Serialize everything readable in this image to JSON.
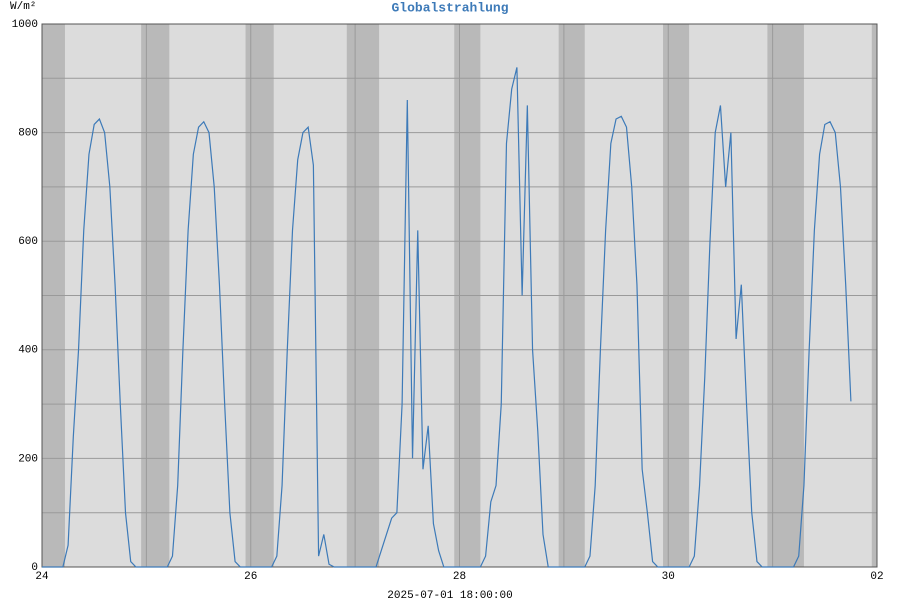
{
  "chart_data": {
    "type": "line",
    "title": "Globalstrahlung",
    "y_label": "W/m²",
    "x_label": "2025-07-01 18:00:00",
    "xlim": [
      24,
      32
    ],
    "xticks": [
      24,
      26,
      28,
      30,
      {
        "value": 32,
        "label": "02"
      }
    ],
    "x_minor_grid": [
      25,
      27,
      29,
      31
    ],
    "ylim": [
      0,
      1000
    ],
    "yticks": [
      0,
      200,
      400,
      600,
      800,
      1000
    ],
    "y_minor_grid": [
      100,
      300,
      500,
      700,
      900
    ],
    "grid": true,
    "background": "#dcdcdc",
    "shade_color": "#b9b9b9",
    "shaded_x_ranges": [
      [
        24,
        24.22
      ],
      [
        24.95,
        25.22
      ],
      [
        25.95,
        26.22
      ],
      [
        26.92,
        27.23
      ],
      [
        27.95,
        28.2
      ],
      [
        28.95,
        29.2
      ],
      [
        29.95,
        30.2
      ],
      [
        30.95,
        31.3
      ],
      [
        31.95,
        32
      ]
    ],
    "series": [
      {
        "name": "Globalstrahlung",
        "color": "#3d7ab8",
        "x": [
          24,
          24.2,
          24.25,
          24.3,
          24.35,
          24.4,
          24.45,
          24.5,
          24.55,
          24.6,
          24.65,
          24.7,
          24.75,
          24.8,
          24.85,
          24.9,
          25,
          25.2,
          25.25,
          25.3,
          25.35,
          25.4,
          25.45,
          25.5,
          25.55,
          25.6,
          25.65,
          25.7,
          25.75,
          25.8,
          25.85,
          25.9,
          26,
          26.2,
          26.25,
          26.3,
          26.35,
          26.4,
          26.45,
          26.5,
          26.55,
          26.6,
          26.65,
          26.7,
          26.75,
          26.8,
          26.85,
          26.9,
          27,
          27.2,
          27.25,
          27.3,
          27.35,
          27.4,
          27.45,
          27.5,
          27.55,
          27.6,
          27.65,
          27.7,
          27.75,
          27.8,
          27.85,
          27.9,
          28,
          28.2,
          28.25,
          28.3,
          28.35,
          28.4,
          28.45,
          28.5,
          28.55,
          28.6,
          28.65,
          28.7,
          28.75,
          28.8,
          28.85,
          28.9,
          29,
          29.2,
          29.25,
          29.3,
          29.35,
          29.4,
          29.45,
          29.5,
          29.55,
          29.6,
          29.65,
          29.7,
          29.75,
          29.8,
          29.85,
          29.9,
          30,
          30.2,
          30.25,
          30.3,
          30.35,
          30.4,
          30.45,
          30.5,
          30.55,
          30.6,
          30.65,
          30.7,
          30.75,
          30.8,
          30.85,
          30.9,
          31,
          31.2,
          31.25,
          31.3,
          31.35,
          31.4,
          31.45,
          31.5,
          31.55,
          31.6,
          31.65,
          31.7,
          31.75
        ],
        "values": [
          0,
          0,
          40,
          240,
          400,
          620,
          760,
          815,
          825,
          800,
          700,
          520,
          300,
          100,
          10,
          0,
          0,
          0,
          20,
          150,
          400,
          620,
          760,
          810,
          820,
          800,
          700,
          520,
          300,
          100,
          10,
          0,
          0,
          0,
          20,
          150,
          400,
          620,
          750,
          800,
          810,
          740,
          20,
          60,
          5,
          0,
          0,
          0,
          0,
          0,
          30,
          60,
          90,
          100,
          300,
          860,
          200,
          620,
          180,
          260,
          80,
          30,
          0,
          0,
          0,
          0,
          20,
          120,
          150,
          300,
          780,
          880,
          920,
          500,
          850,
          400,
          250,
          60,
          0,
          0,
          0,
          0,
          20,
          150,
          400,
          620,
          780,
          825,
          830,
          810,
          700,
          520,
          180,
          100,
          10,
          0,
          0,
          0,
          20,
          150,
          350,
          600,
          800,
          850,
          700,
          800,
          420,
          520,
          300,
          100,
          10,
          0,
          0,
          0,
          20,
          150,
          400,
          620,
          760,
          815,
          820,
          800,
          700,
          520,
          305
        ]
      }
    ]
  }
}
